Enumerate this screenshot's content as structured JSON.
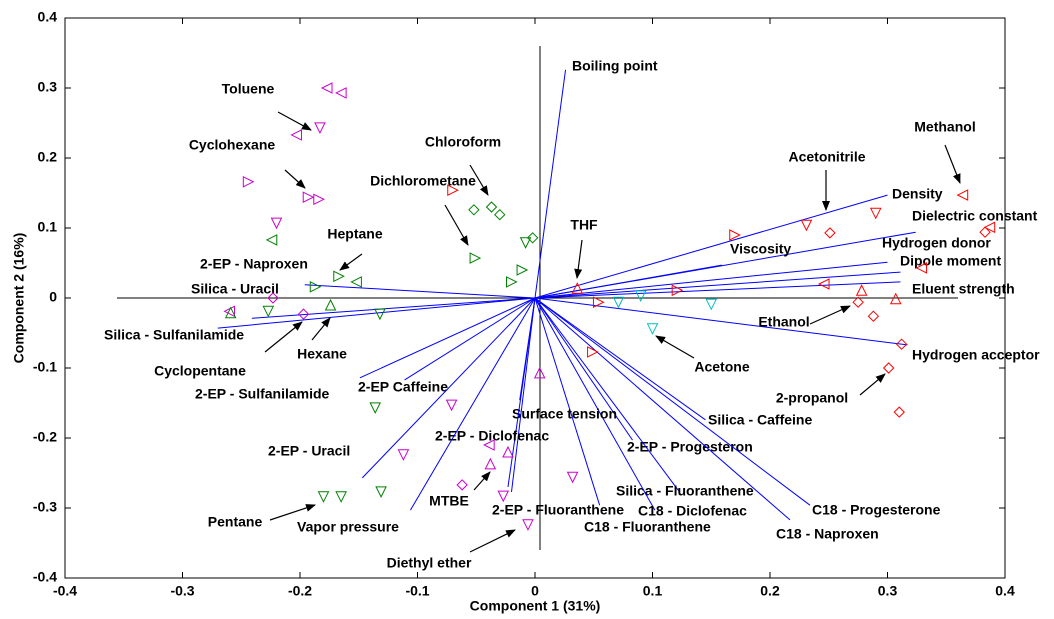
{
  "chart_data": {
    "type": "biplot",
    "x_label": "Component 1 (31%)",
    "y_label": "Component 2 (16%)",
    "xlim": [
      -0.4,
      0.4
    ],
    "ylim": [
      -0.4,
      0.4
    ],
    "xticks": [
      -0.4,
      -0.3,
      -0.2,
      -0.1,
      0,
      0.1,
      0.2,
      0.3,
      0.4
    ],
    "yticks": [
      -0.4,
      -0.3,
      -0.2,
      -0.1,
      0,
      0.1,
      0.2,
      0.3,
      0.4
    ],
    "vector_color": "#0000ff",
    "vectors": [
      {
        "label": "Boiling point",
        "x": 0.026,
        "y": 0.326
      },
      {
        "label": "Density",
        "x": 0.3,
        "y": 0.147
      },
      {
        "label": "Dielectric constant",
        "x": 0.324,
        "y": 0.094
      },
      {
        "label": "Hydrogen donor",
        "x": 0.3,
        "y": 0.051
      },
      {
        "label": "Dipole moment",
        "x": 0.311,
        "y": 0.037
      },
      {
        "label": "Eluent strength",
        "x": 0.311,
        "y": 0.023
      },
      {
        "label": "Viscosity",
        "x": 0.159,
        "y": 0.047
      },
      {
        "label": "Hydrogen acceptor",
        "x": 0.317,
        "y": -0.067
      },
      {
        "label": "Silica - Caffeine",
        "x": 0.145,
        "y": -0.174
      },
      {
        "label": "2-EP - Progesteron",
        "x": 0.083,
        "y": -0.203
      },
      {
        "label": "C18 - Progesterone",
        "x": 0.234,
        "y": -0.296
      },
      {
        "label": "C18 - Naproxen",
        "x": 0.217,
        "y": -0.317
      },
      {
        "label": "Silica - Fluoranthene",
        "x": 0.123,
        "y": -0.277
      },
      {
        "label": "C18 - Diclofenac",
        "x": 0.102,
        "y": -0.303
      },
      {
        "label": "C18 - Fluoranthene",
        "x": 0.055,
        "y": -0.296
      },
      {
        "label": "2-EP - Fluoranthene",
        "x": -0.02,
        "y": -0.277
      },
      {
        "label": "Surface tension",
        "x": -0.013,
        "y": -0.146
      },
      {
        "label": "2-EP - Diclofenac",
        "x": -0.023,
        "y": -0.27
      },
      {
        "label": "2-EP Caffeine",
        "x": -0.111,
        "y": -0.117
      },
      {
        "label": "2-EP - Sulfanilamide",
        "x": -0.149,
        "y": -0.114
      },
      {
        "label": "2-EP - Uracil",
        "x": -0.147,
        "y": -0.257
      },
      {
        "label": "Vapor pressure",
        "x": -0.106,
        "y": -0.303
      },
      {
        "label": "2-EP - Naproxen",
        "x": -0.196,
        "y": 0.019
      },
      {
        "label": "Silica - Uracil",
        "x": -0.241,
        "y": -0.029
      },
      {
        "label": "Silica - Sulfanilamide",
        "x": -0.27,
        "y": -0.043
      }
    ],
    "annotations": [
      "Toluene",
      "Cyclohexane",
      "Chloroform",
      "Dichlorometane",
      "Heptane",
      "Methanol",
      "Acetonitrile",
      "THF",
      "Ethanol",
      "Acetone",
      "2-propanol",
      "Hexane",
      "Cyclopentane",
      "Pentane",
      "MTBE",
      "Diethyl ether"
    ],
    "point_groups": [
      {
        "color": "#cc00cc",
        "x": [
          -0.177,
          -0.165,
          -0.183,
          -0.203,
          -0.244,
          -0.193,
          -0.184,
          -0.22,
          -0.26,
          -0.223,
          -0.197,
          0.004,
          -0.071,
          -0.112,
          -0.039,
          -0.062,
          -0.038,
          -0.023,
          -0.027,
          -0.006,
          0.032
        ],
        "y": [
          0.3,
          0.293,
          0.243,
          0.233,
          0.166,
          0.144,
          0.141,
          0.107,
          -0.019,
          0.0,
          -0.023,
          -0.107,
          -0.153,
          -0.224,
          -0.21,
          -0.267,
          -0.237,
          -0.22,
          -0.283,
          -0.324,
          -0.256
        ],
        "markers": [
          "left",
          "left",
          "down",
          "left",
          "right",
          "right",
          "right",
          "down",
          "left",
          "diamond",
          "diamond",
          "up",
          "down",
          "down",
          "left",
          "diamond",
          "up",
          "up",
          "down",
          "down",
          "down"
        ]
      },
      {
        "color": "#008000",
        "x": [
          -0.052,
          -0.037,
          -0.03,
          -0.051,
          -0.008,
          -0.002,
          -0.011,
          -0.02,
          -0.224,
          -0.167,
          -0.152,
          -0.187,
          -0.174,
          -0.259,
          -0.227,
          -0.132,
          -0.136,
          -0.18,
          -0.165,
          -0.131
        ],
        "y": [
          0.126,
          0.13,
          0.119,
          0.057,
          0.079,
          0.086,
          0.04,
          0.023,
          0.083,
          0.031,
          0.023,
          0.016,
          -0.01,
          -0.021,
          -0.019,
          -0.023,
          -0.157,
          -0.284,
          -0.284,
          -0.277
        ],
        "markers": [
          "diamond",
          "diamond",
          "diamond",
          "right",
          "down",
          "diamond",
          "right",
          "right",
          "left",
          "right",
          "left",
          "right",
          "up",
          "up",
          "down",
          "down",
          "down",
          "down",
          "down",
          "down"
        ]
      },
      {
        "color": "#ff0000",
        "x": [
          0.036,
          0.054,
          0.049,
          0.121,
          0.17,
          0.231,
          0.251,
          0.29,
          0.364,
          0.387,
          0.383,
          0.329,
          0.246,
          0.278,
          0.307,
          0.275,
          0.288,
          0.312,
          0.301,
          0.31,
          -0.07
        ],
        "y": [
          0.014,
          -0.006,
          -0.077,
          0.011,
          0.09,
          0.104,
          0.093,
          0.121,
          0.147,
          0.101,
          0.094,
          0.043,
          0.02,
          0.011,
          -0.001,
          -0.006,
          -0.026,
          -0.066,
          -0.1,
          -0.163,
          0.154
        ],
        "markers": [
          "up",
          "right",
          "right",
          "right",
          "right",
          "down",
          "diamond",
          "down",
          "left",
          "left",
          "diamond",
          "left",
          "left",
          "up",
          "up",
          "diamond",
          "diamond",
          "diamond",
          "diamond",
          "diamond",
          "right"
        ]
      },
      {
        "color": "#00bfbf",
        "x": [
          0.071,
          0.09,
          0.15,
          0.1
        ],
        "y": [
          -0.006,
          0.003,
          -0.009,
          -0.044
        ],
        "markers": [
          "down",
          "down",
          "down",
          "down"
        ]
      }
    ]
  }
}
